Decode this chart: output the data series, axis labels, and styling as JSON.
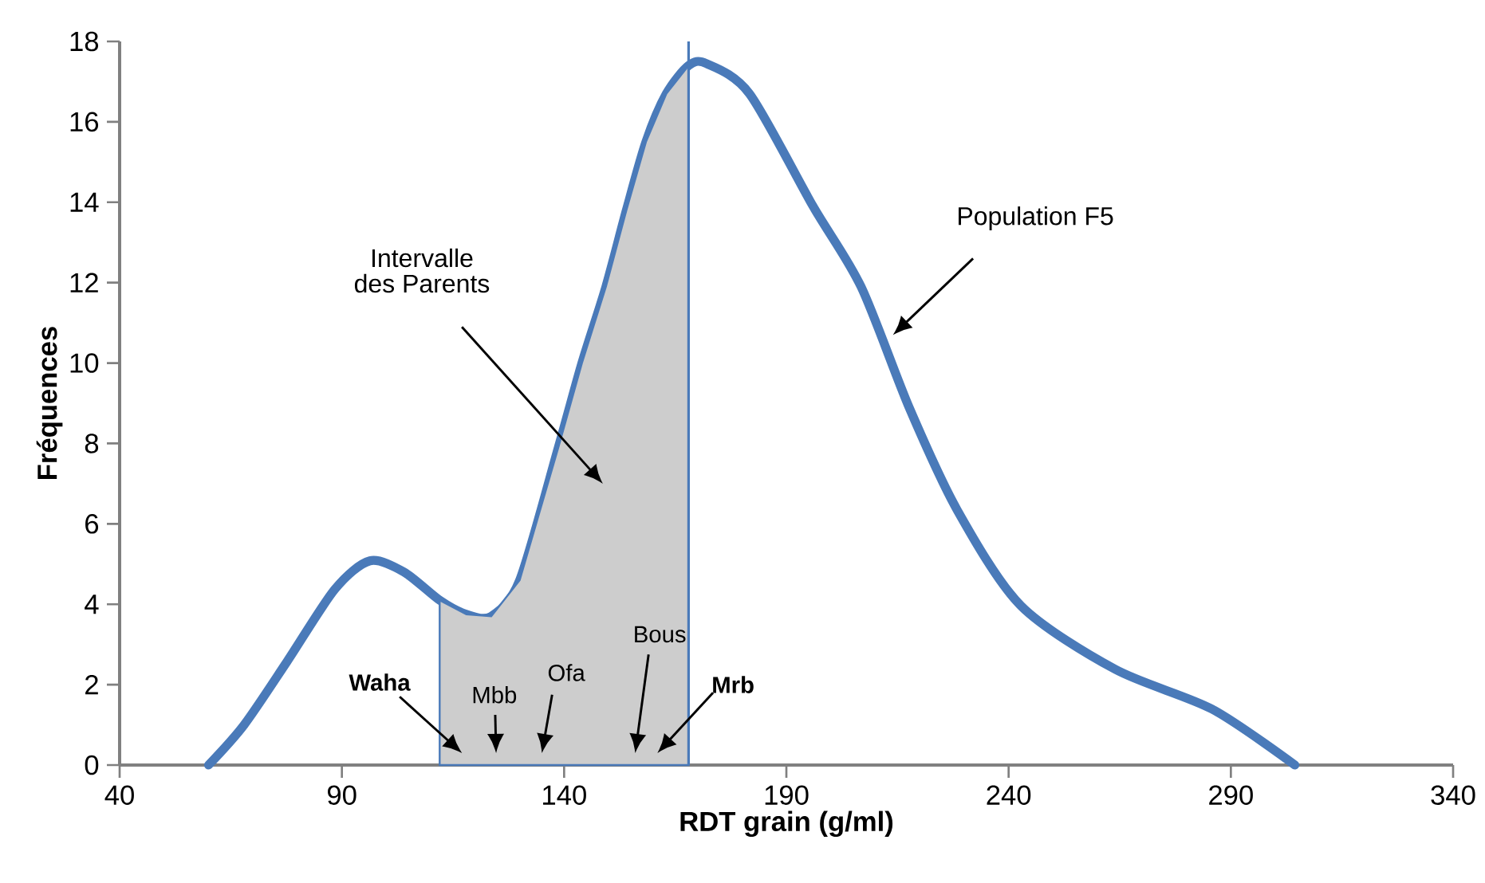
{
  "chart_data": {
    "type": "line",
    "xlabel": "RDT grain (g/ml)",
    "ylabel": "Fréquences",
    "series": [
      {
        "color": "#4a7ab9",
        "x": [
          60,
          68,
          77.7,
          88.4,
          96.3,
          104,
          112,
          118,
          123.6,
          130,
          138.7,
          144,
          149.4,
          154,
          158.4,
          163,
          168,
          172,
          181.7,
          196,
          206.8,
          217.6,
          228.4,
          242.7,
          264,
          285.8,
          304.4
        ],
        "values": [
          0,
          1.0,
          2.58,
          4.37,
          5.08,
          4.8,
          4.1,
          3.75,
          3.7,
          4.6,
          7.9,
          10,
          11.9,
          13.8,
          15.5,
          16.7,
          17.4,
          17.45,
          16.7,
          13.9,
          11.9,
          8.9,
          6.35,
          3.97,
          2.38,
          1.39,
          0
        ]
      },
      {
        "type": "area",
        "color": "#cdcdcd",
        "x": [
          112,
          118,
          123.6,
          130,
          138.7,
          144,
          149.4,
          154,
          158.4,
          163,
          168
        ],
        "values": [
          4.1,
          3.75,
          3.7,
          4.6,
          7.9,
          10,
          11.9,
          13.8,
          15.5,
          16.7,
          17.4
        ]
      }
    ],
    "ref_lines": [
      {
        "axis": "x",
        "value": 168,
        "color": "#4a7ab9"
      }
    ],
    "annotations": [
      "Intervalle des Parents",
      "Population F5",
      "Waha",
      "Mbb",
      "Ofa",
      "Bous",
      "Mrb"
    ],
    "xlim": [
      40,
      340
    ],
    "xticks": [
      40,
      90,
      140,
      190,
      240,
      290,
      340
    ],
    "ylim": [
      0,
      18
    ],
    "yticks": [
      0,
      2,
      4,
      6,
      8,
      10,
      12,
      14,
      16,
      18
    ],
    "grid": false,
    "marker": "none",
    "line_style": "solid"
  }
}
